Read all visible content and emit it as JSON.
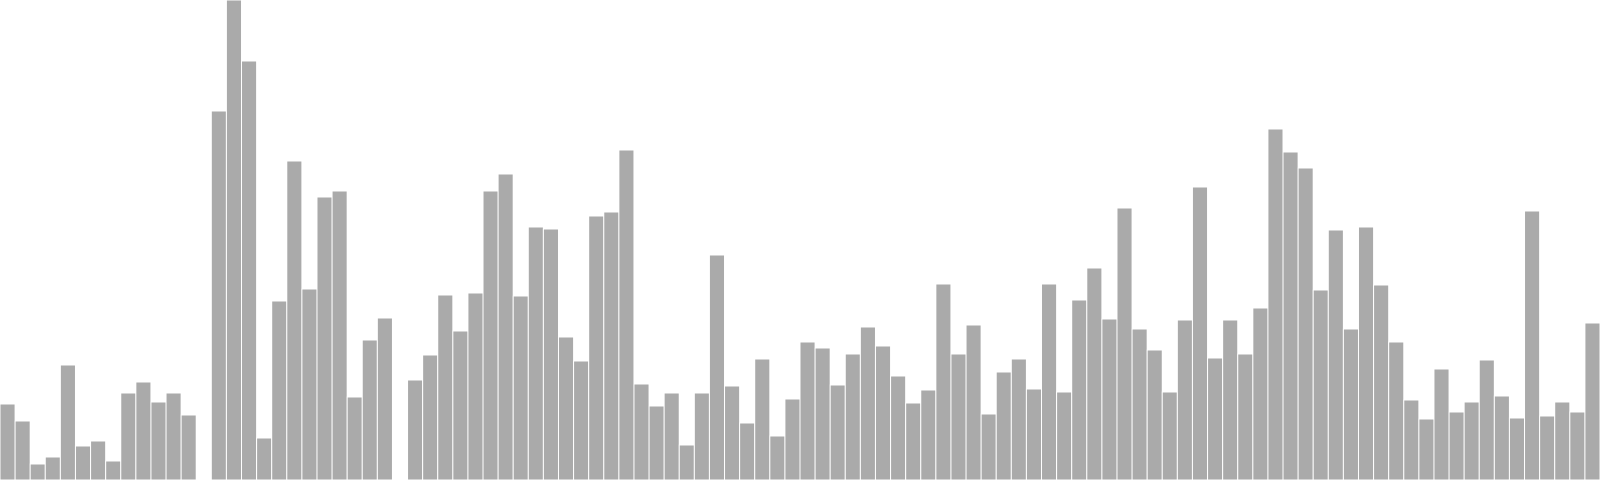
{
  "chart_data": {
    "type": "bar",
    "title": "",
    "xlabel": "",
    "ylabel": "",
    "grid": false,
    "legend": "none",
    "ylim": [
      0,
      480
    ],
    "bar_color": "#aaaaaa",
    "bar_edge_color": "#ffffff",
    "values": [
      76,
      59,
      16,
      23,
      115,
      34,
      39,
      19,
      87,
      98,
      78,
      87,
      65,
      0,
      369,
      480,
      419,
      42,
      179,
      319,
      191,
      283,
      289,
      83,
      140,
      162,
      0,
      100,
      125,
      185,
      149,
      187,
      289,
      306,
      184,
      253,
      251,
      143,
      119,
      264,
      268,
      330,
      96,
      74,
      87,
      35,
      87,
      225,
      94,
      57,
      121,
      44,
      81,
      138,
      132,
      95,
      126,
      153,
      134,
      104,
      77,
      90,
      196,
      126,
      155,
      66,
      108,
      121,
      91,
      196,
      88,
      180,
      212,
      161,
      272,
      151,
      130,
      88,
      160,
      293,
      122,
      160,
      126,
      172,
      351,
      328,
      312,
      190,
      250,
      151,
      253,
      195,
      138,
      80,
      61,
      111,
      68,
      78,
      120,
      84,
      62,
      269,
      64,
      78,
      68,
      157
    ]
  }
}
